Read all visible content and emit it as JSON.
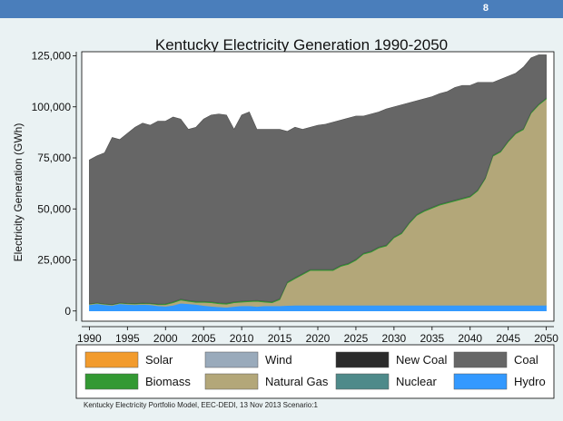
{
  "slide": {
    "number": "8"
  },
  "colors": {
    "header": "#4a7ebb",
    "panel": "#eaf2f3",
    "plot_bg": "#ffffff"
  },
  "chart_data": {
    "type": "area",
    "title": "Kentucky Electricity Generation 1990-2050",
    "ylabel": "Electricity Generation (GWh)",
    "xlabel": "",
    "xlim": [
      1989,
      2051
    ],
    "ylim": [
      -5000,
      127000
    ],
    "x_ticks": [
      "1990",
      "1995",
      "2000",
      "2005",
      "2010",
      "2015",
      "2020",
      "2025",
      "2030",
      "2035",
      "2040",
      "2045",
      "2050"
    ],
    "y_ticks": [
      {
        "value": 0,
        "label": "0"
      },
      {
        "value": 25000,
        "label": "25,000"
      },
      {
        "value": 50000,
        "label": "50,000"
      },
      {
        "value": 75000,
        "label": "75,000"
      },
      {
        "value": 100000,
        "label": "100,000"
      },
      {
        "value": 125000,
        "label": "125,000"
      }
    ],
    "x": [
      1990,
      1991,
      1992,
      1993,
      1994,
      1995,
      1996,
      1997,
      1998,
      1999,
      2000,
      2001,
      2002,
      2003,
      2004,
      2005,
      2006,
      2007,
      2008,
      2009,
      2010,
      2011,
      2012,
      2013,
      2014,
      2015,
      2016,
      2017,
      2018,
      2019,
      2020,
      2021,
      2022,
      2023,
      2024,
      2025,
      2026,
      2027,
      2028,
      2029,
      2030,
      2031,
      2032,
      2033,
      2034,
      2035,
      2036,
      2037,
      2038,
      2039,
      2040,
      2041,
      2042,
      2043,
      2044,
      2045,
      2046,
      2047,
      2048,
      2049,
      2050
    ],
    "legend_position": "bottom",
    "series": [
      {
        "name": "Hydro",
        "color": "#3399ff",
        "values": [
          3000,
          3500,
          3000,
          2700,
          3500,
          3200,
          3000,
          3200,
          3000,
          2500,
          2300,
          2800,
          3800,
          3500,
          3200,
          2700,
          2300,
          2000,
          1800,
          2200,
          2500,
          2500,
          2200,
          2500,
          2500,
          2500,
          2700,
          2800,
          2800,
          2800,
          2800,
          2800,
          2800,
          2800,
          2800,
          2800,
          2800,
          2800,
          2800,
          2800,
          2800,
          2800,
          2800,
          2800,
          2800,
          2800,
          2800,
          2800,
          2800,
          2800,
          2800,
          2800,
          2800,
          2800,
          2800,
          2800,
          2800,
          2800,
          2800,
          2800,
          2800
        ]
      },
      {
        "name": "Nuclear",
        "color": "#4e8a8a",
        "values": [
          0,
          0,
          0,
          0,
          0,
          0,
          0,
          0,
          0,
          0,
          0,
          0,
          0,
          0,
          0,
          0,
          0,
          0,
          0,
          0,
          0,
          0,
          0,
          0,
          0,
          0,
          0,
          0,
          0,
          0,
          0,
          0,
          0,
          0,
          0,
          0,
          0,
          0,
          0,
          0,
          0,
          0,
          0,
          0,
          0,
          0,
          0,
          0,
          0,
          0,
          0,
          0,
          0,
          0,
          0,
          0,
          0,
          0,
          0,
          0,
          0
        ]
      },
      {
        "name": "Natural Gas",
        "color": "#b3a779",
        "values": [
          300,
          300,
          300,
          300,
          300,
          300,
          400,
          400,
          500,
          600,
          800,
          1200,
          1500,
          1200,
          1000,
          1500,
          1700,
          1500,
          1500,
          1800,
          1800,
          2000,
          2500,
          1800,
          1500,
          3000,
          11000,
          13000,
          15000,
          17000,
          17000,
          17000,
          17000,
          19000,
          20000,
          22000,
          25000,
          26000,
          28000,
          29000,
          33000,
          35000,
          40000,
          44000,
          46000,
          47500,
          49000,
          50000,
          51000,
          52000,
          53000,
          56000,
          62000,
          73000,
          75000,
          80000,
          84000,
          86000,
          94000,
          98000,
          101000
        ]
      },
      {
        "name": "Biomass",
        "color": "#339933",
        "values": [
          200,
          200,
          200,
          200,
          200,
          300,
          300,
          300,
          300,
          300,
          400,
          500,
          500,
          500,
          500,
          500,
          500,
          500,
          500,
          500,
          500,
          500,
          500,
          500,
          500,
          500,
          500,
          500,
          500,
          500,
          500,
          500,
          500,
          500,
          500,
          500,
          500,
          500,
          500,
          500,
          500,
          500,
          500,
          500,
          500,
          500,
          500,
          500,
          500,
          500,
          500,
          500,
          500,
          500,
          500,
          500,
          500,
          500,
          500,
          500,
          500
        ]
      },
      {
        "name": "Wind",
        "color": "#99aabb",
        "values": [
          0,
          0,
          0,
          0,
          0,
          0,
          0,
          0,
          0,
          0,
          0,
          0,
          0,
          0,
          0,
          0,
          0,
          0,
          0,
          0,
          0,
          0,
          0,
          0,
          0,
          0,
          0,
          0,
          0,
          0,
          0,
          0,
          0,
          0,
          0,
          0,
          0,
          0,
          0,
          0,
          0,
          0,
          0,
          0,
          0,
          0,
          0,
          0,
          0,
          0,
          0,
          0,
          0,
          0,
          0,
          0,
          0,
          0,
          0,
          0,
          0
        ]
      },
      {
        "name": "Solar",
        "color": "#f29b2d",
        "values": [
          0,
          0,
          0,
          0,
          0,
          0,
          0,
          0,
          0,
          0,
          0,
          0,
          0,
          0,
          0,
          0,
          0,
          0,
          0,
          0,
          0,
          0,
          0,
          0,
          0,
          0,
          0,
          0,
          0,
          0,
          0,
          0,
          0,
          0,
          0,
          0,
          0,
          0,
          0,
          0,
          0,
          0,
          0,
          0,
          0,
          0,
          0,
          0,
          0,
          0,
          0,
          0,
          0,
          0,
          0,
          0,
          0,
          0,
          0,
          0,
          0
        ]
      },
      {
        "name": "New Coal",
        "color": "#2b2b2b",
        "values": [
          0,
          0,
          0,
          0,
          0,
          0,
          0,
          0,
          0,
          0,
          0,
          0,
          0,
          0,
          0,
          0,
          0,
          0,
          0,
          0,
          0,
          0,
          0,
          0,
          0,
          0,
          0,
          0,
          0,
          0,
          0,
          0,
          0,
          0,
          0,
          0,
          0,
          0,
          0,
          0,
          0,
          0,
          0,
          0,
          0,
          0,
          0,
          0,
          0,
          0,
          0,
          0,
          0,
          0,
          0,
          0,
          0,
          0,
          0,
          0,
          0
        ]
      },
      {
        "name": "Coal",
        "color": "#666666",
        "values": [
          70500,
          72000,
          74000,
          81800,
          80000,
          83200,
          86300,
          88100,
          87200,
          89600,
          89500,
          90500,
          88200,
          83800,
          85300,
          89300,
          91500,
          92500,
          92200,
          84500,
          91200,
          92500,
          83800,
          84200,
          84500,
          83000,
          73800,
          73700,
          70700,
          69700,
          70700,
          71200,
          72200,
          71200,
          71200,
          70200,
          67200,
          67200,
          66200,
          66700,
          63700,
          62700,
          58700,
          55700,
          54700,
          54200,
          54200,
          54200,
          55200,
          55200,
          54200,
          52700,
          46700,
          35700,
          35200,
          31700,
          29200,
          30200,
          26700,
          24200,
          21200
        ]
      }
    ],
    "legend": [
      {
        "name": "Solar",
        "color": "#f29b2d"
      },
      {
        "name": "Wind",
        "color": "#99aabb"
      },
      {
        "name": "New Coal",
        "color": "#2b2b2b"
      },
      {
        "name": "Coal",
        "color": "#666666"
      },
      {
        "name": "Biomass",
        "color": "#339933"
      },
      {
        "name": "Natural Gas",
        "color": "#b3a779"
      },
      {
        "name": "Nuclear",
        "color": "#4e8a8a"
      },
      {
        "name": "Hydro",
        "color": "#3399ff"
      }
    ],
    "footnote": "Kentucky Electricity Portfolio Model, EEC-DEDI, 13 Nov 2013 Scenario:1"
  }
}
